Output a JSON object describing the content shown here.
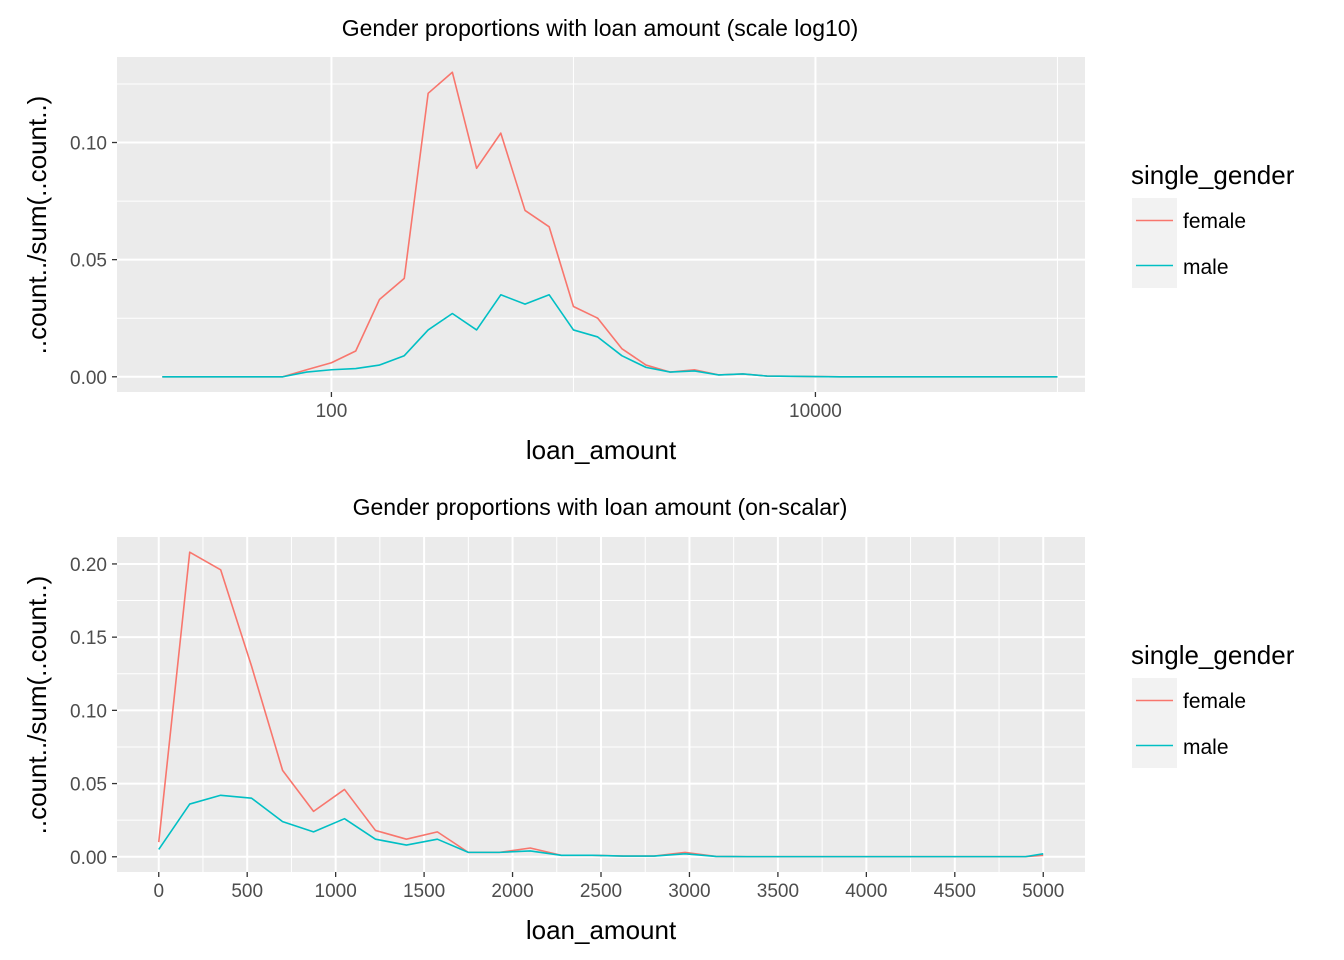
{
  "colors": {
    "female": "#F8766D",
    "male": "#00BFC4",
    "panel_background": "#EBEBEB",
    "grid_line": "#FFFFFF",
    "legend_key_background": "#F2F2F2"
  },
  "chart_data": [
    {
      "type": "line",
      "title": "Gender proportions with loan amount (scale log10)",
      "xlabel": "loan_amount",
      "ylabel": "..count../sum(..count..)",
      "x_scale": "log10",
      "xlim": [
        13,
        130000
      ],
      "ylim": [
        -0.0065,
        0.1365
      ],
      "grid": true,
      "x_ticks": [
        100,
        10000
      ],
      "x_tick_labels": [
        "100",
        "10000"
      ],
      "x_minor_ticks": [
        1000,
        100000
      ],
      "y_ticks": [
        0.0,
        0.05,
        0.1
      ],
      "y_tick_labels": [
        "0.00",
        "0.05",
        "0.10"
      ],
      "y_minor_ticks": [
        0.025,
        0.075,
        0.125
      ],
      "legend": {
        "title": "single_gender",
        "placement": "right",
        "entries": [
          "female",
          "male"
        ]
      },
      "x": [
        20,
        25,
        31.6,
        40,
        50,
        63,
        79,
        100,
        126,
        158,
        200,
        251,
        316,
        398,
        501,
        631,
        794,
        1000,
        1260,
        1585,
        1995,
        2512,
        3162,
        3981,
        5012,
        6310,
        7943,
        10000,
        12589,
        15849,
        19953,
        25119,
        31623,
        39811,
        50119,
        63096,
        79433,
        100000
      ],
      "series": [
        {
          "name": "female",
          "values": [
            0,
            0,
            0,
            0,
            0,
            0,
            0.003,
            0.006,
            0.011,
            0.033,
            0.042,
            0.121,
            0.13,
            0.089,
            0.104,
            0.071,
            0.064,
            0.03,
            0.025,
            0.012,
            0.005,
            0.002,
            0.003,
            0.0008,
            0.0012,
            0.0003,
            0.0002,
            0.0001,
            0,
            0,
            0,
            0,
            0,
            0,
            0,
            0,
            0,
            0
          ]
        },
        {
          "name": "male",
          "values": [
            0,
            0,
            0,
            0,
            0,
            0,
            0.002,
            0.003,
            0.0035,
            0.005,
            0.009,
            0.02,
            0.027,
            0.02,
            0.035,
            0.031,
            0.035,
            0.02,
            0.017,
            0.009,
            0.004,
            0.002,
            0.0025,
            0.0008,
            0.0012,
            0.0003,
            0.0002,
            0.0001,
            0,
            0,
            0,
            0,
            0,
            0,
            0,
            0,
            0,
            0
          ]
        }
      ]
    },
    {
      "type": "line",
      "title": "Gender proportions with loan amount (on-scalar)",
      "xlabel": "loan_amount",
      "ylabel": "..count../sum(..count..)",
      "x_scale": "linear",
      "xlim": [
        -236,
        5236
      ],
      "ylim": [
        -0.0104,
        0.2184
      ],
      "grid": true,
      "x_ticks": [
        0,
        500,
        1000,
        1500,
        2000,
        2500,
        3000,
        3500,
        4000,
        4500,
        5000
      ],
      "x_tick_labels": [
        "0",
        "500",
        "1000",
        "1500",
        "2000",
        "2500",
        "3000",
        "3500",
        "4000",
        "4500",
        "5000"
      ],
      "x_minor_ticks": [
        250,
        750,
        1250,
        1750,
        2250,
        2750,
        3250,
        3750,
        4250,
        4750
      ],
      "y_ticks": [
        0.0,
        0.05,
        0.1,
        0.15,
        0.2
      ],
      "y_tick_labels": [
        "0.00",
        "0.05",
        "0.10",
        "0.15",
        "0.20"
      ],
      "y_minor_ticks": [
        0.025,
        0.075,
        0.125,
        0.175
      ],
      "legend": {
        "title": "single_gender",
        "placement": "right",
        "entries": [
          "female",
          "male"
        ]
      },
      "x": [
        0,
        175,
        350,
        525,
        700,
        875,
        1050,
        1225,
        1400,
        1575,
        1750,
        1925,
        2100,
        2275,
        2450,
        2625,
        2800,
        2975,
        3150,
        3325,
        3500,
        3675,
        3850,
        4025,
        4200,
        4375,
        4550,
        4725,
        4900,
        5000
      ],
      "series": [
        {
          "name": "female",
          "values": [
            0.01,
            0.208,
            0.196,
            0.13,
            0.059,
            0.031,
            0.046,
            0.018,
            0.012,
            0.017,
            0.003,
            0.003,
            0.006,
            0.001,
            0.001,
            0.0005,
            0.0005,
            0.003,
            0.0002,
            0.0001,
            0.0001,
            0.0001,
            0.0001,
            0.0001,
            0.0001,
            0.0001,
            0.0001,
            0.0001,
            0.0001,
            0.001
          ]
        },
        {
          "name": "male",
          "values": [
            0.005,
            0.036,
            0.042,
            0.04,
            0.024,
            0.017,
            0.026,
            0.012,
            0.008,
            0.012,
            0.003,
            0.003,
            0.004,
            0.001,
            0.001,
            0.0005,
            0.0005,
            0.002,
            0.0002,
            0.0001,
            0.0001,
            0.0001,
            0.0001,
            0.0001,
            0.0001,
            0.0001,
            0.0001,
            0.0001,
            0.0001,
            0.002
          ]
        }
      ]
    }
  ]
}
